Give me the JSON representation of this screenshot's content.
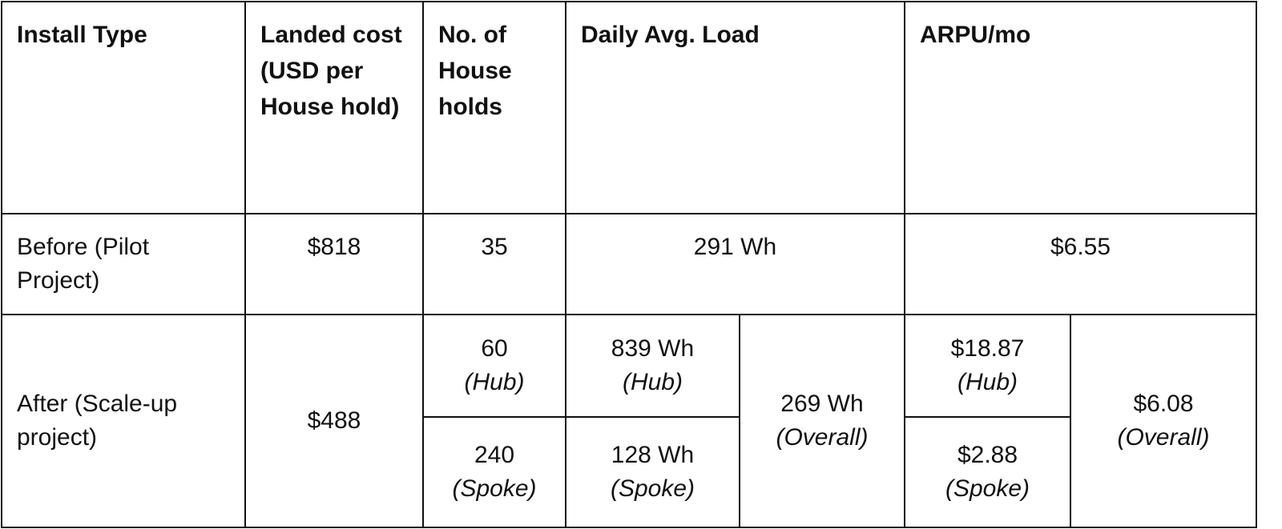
{
  "headers": [
    "Install Type",
    "Landed cost (USD per House hold)",
    "No. of House holds",
    "Daily Avg. Load",
    "ARPU/mo"
  ],
  "rows": {
    "before": {
      "install_type": "Before (Pilot Project)",
      "landed_cost": "$818",
      "households": "35",
      "daily_load": "291 Wh",
      "arpu": "$6.55"
    },
    "after": {
      "install_type": "After (Scale-up project)",
      "landed_cost": "$488",
      "households_hub": "60",
      "households_spoke": "240",
      "daily_load_hub": "839 Wh",
      "daily_load_spoke": "128 Wh",
      "daily_load_overall": "269 Wh",
      "arpu_hub": "$18.87",
      "arpu_spoke": "$2.88",
      "arpu_overall": "$6.08"
    }
  },
  "labels": {
    "hub": "(Hub)",
    "spoke": "(Spoke)",
    "overall": "(Overall)"
  }
}
